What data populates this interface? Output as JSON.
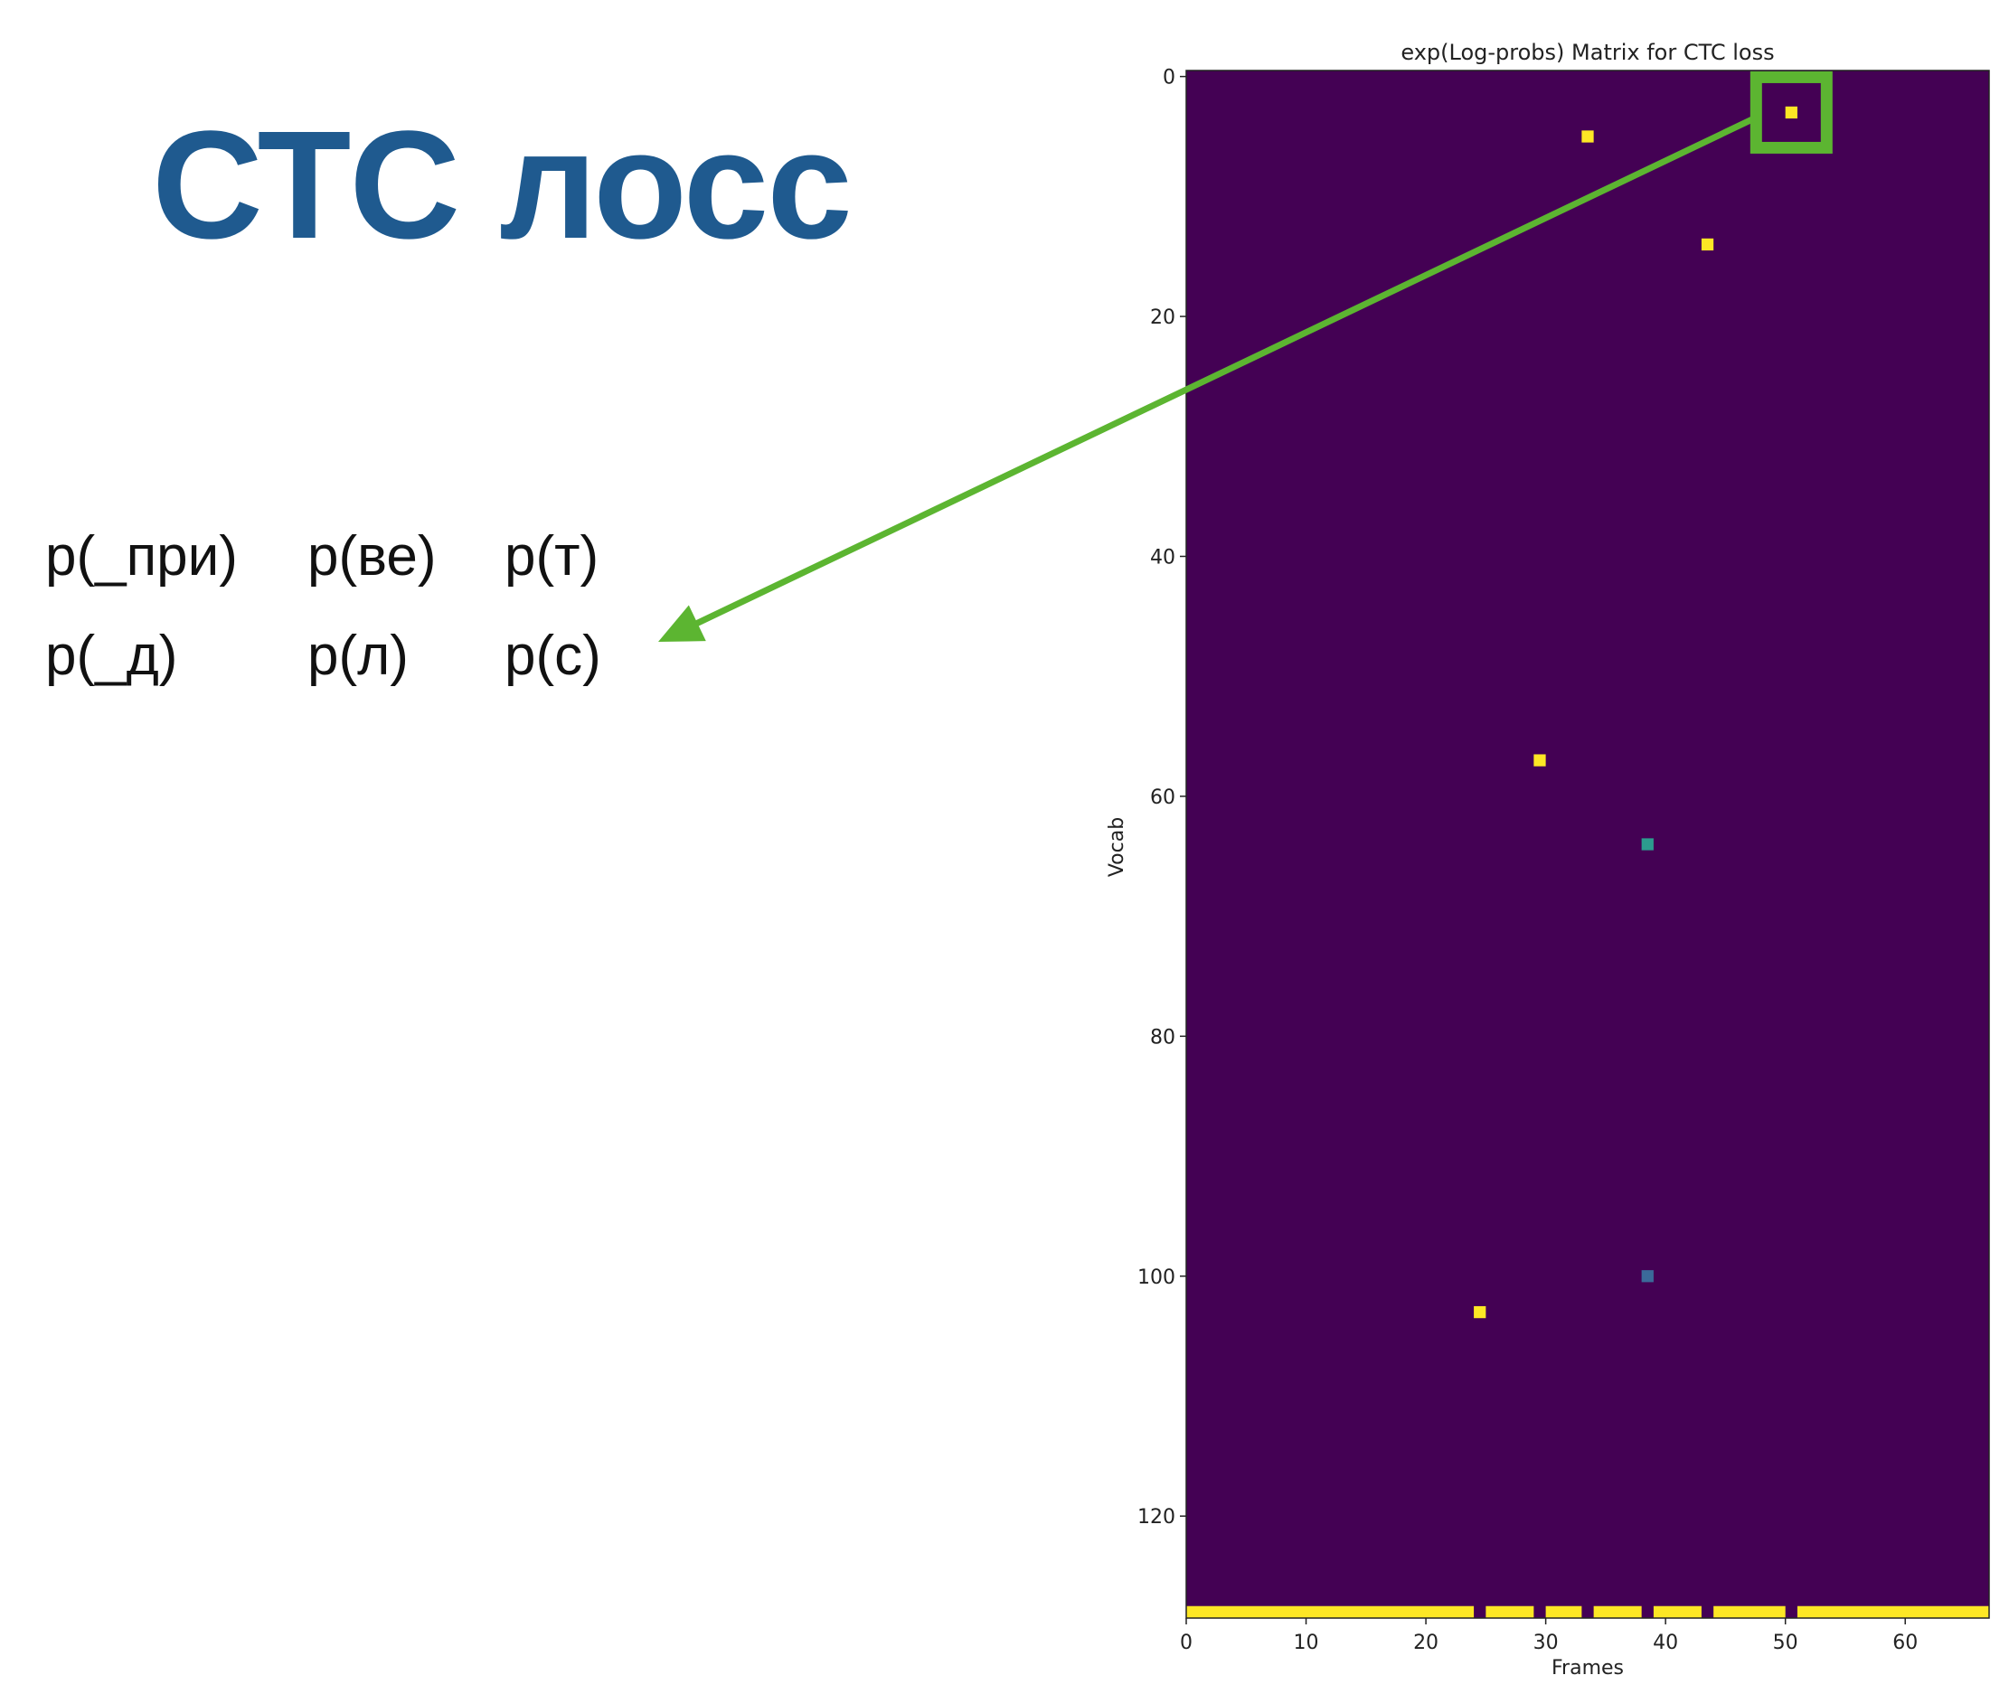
{
  "slide": {
    "title": "СТС лосс",
    "terms": [
      [
        "p(_при)",
        "p(ве)",
        "p(т)"
      ],
      [
        "p(_д)",
        "p(л)",
        "p(с)"
      ]
    ]
  },
  "colors": {
    "title": "#1f5a8f",
    "background_cell": "#440154",
    "high_cell": "#fde725",
    "mid_cell": "#35b779",
    "teal_cell": "#2c9c8e",
    "blue_cell": "#3b6a9a",
    "highlight": "#5cb531"
  },
  "chart_data": {
    "type": "heatmap",
    "title": "exp(Log-probs) Matrix for CTC loss",
    "xlabel": "Frames",
    "ylabel": "Vocab",
    "xlim": [
      0,
      67
    ],
    "ylim": [
      128,
      0
    ],
    "xticks": [
      "0",
      "10",
      "20",
      "30",
      "40",
      "50",
      "60"
    ],
    "yticks": [
      "0",
      "20",
      "40",
      "60",
      "80",
      "100",
      "120"
    ],
    "cells": [
      {
        "frame": 50,
        "vocab": 3,
        "value": 0.95
      },
      {
        "frame": 33,
        "vocab": 5,
        "value": 0.95
      },
      {
        "frame": 43,
        "vocab": 14,
        "value": 0.95
      },
      {
        "frame": 29,
        "vocab": 57,
        "value": 0.95
      },
      {
        "frame": 38,
        "vocab": 64,
        "value": 0.55
      },
      {
        "frame": 38,
        "vocab": 100,
        "value": 0.4
      },
      {
        "frame": 24,
        "vocab": 103,
        "value": 0.95
      }
    ],
    "blank_row": {
      "vocab": 128,
      "frames": [
        [
          0,
          23
        ],
        [
          25,
          28
        ],
        [
          30,
          32
        ],
        [
          34,
          37
        ],
        [
          39,
          42
        ],
        [
          44,
          49
        ],
        [
          51,
          66
        ]
      ]
    },
    "highlight": {
      "frame": 50,
      "vocab": 3
    }
  }
}
